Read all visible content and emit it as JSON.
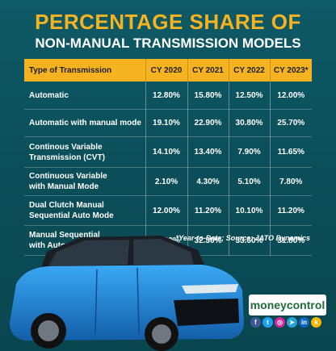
{
  "title": {
    "line1": "PERCENTAGE SHARE OF",
    "line2": "NON-MANUAL TRANSMISSION MODELS"
  },
  "table": {
    "headers": [
      "Type of Transmission",
      "CY 2020",
      "CY 2021",
      "CY 2022",
      "CY 2023*"
    ],
    "rows": [
      {
        "label_1": "Automatic",
        "label_2": "",
        "values": [
          "12.80%",
          "15.80%",
          "12.50%",
          "12.00%"
        ]
      },
      {
        "label_1": "Automatic with manual mode",
        "label_2": "",
        "values": [
          "19.10%",
          "22.90%",
          "30.80%",
          "25.70%"
        ]
      },
      {
        "label_1": "Continous Variable",
        "label_2": "Transmission (CVT)",
        "values": [
          "14.10%",
          "13.40%",
          "7.90%",
          "11.65%"
        ]
      },
      {
        "label_1": "Continuous Variable",
        "label_2": "with Manual Mode",
        "values": [
          "2.10%",
          "4.30%",
          "5.10%",
          "7.80%"
        ]
      },
      {
        "label_1": "Dual Clutch Manual",
        "label_2": "Sequential Auto Mode",
        "values": [
          "12.00%",
          "11.20%",
          "10.10%",
          "11.20%"
        ]
      },
      {
        "label_1": "Manual Sequential",
        "label_2": "with Automatic Mode",
        "values": [
          "39.90%",
          "32.30%",
          "33.60%",
          "31.80%"
        ]
      }
    ]
  },
  "footnote": "*Year-to-Date;  Source: JATO Dynamics",
  "brand": "moneycontrol",
  "social_icons": [
    {
      "icon": "facebook-icon",
      "glyph": "f",
      "color": "#3b5998"
    },
    {
      "icon": "twitter-icon",
      "glyph": "t",
      "color": "#1da1f2"
    },
    {
      "icon": "instagram-icon",
      "glyph": "◎",
      "color": "#d6249f"
    },
    {
      "icon": "telegram-icon",
      "glyph": "➤",
      "color": "#2aa3d9"
    },
    {
      "icon": "linkedin-icon",
      "glyph": "in",
      "color": "#0a66c2"
    },
    {
      "icon": "koo-icon",
      "glyph": "k",
      "color": "#f5b800"
    }
  ],
  "colors": {
    "accent": "#f6b321",
    "background": "#0b4f5a",
    "car": "#1f8fe0"
  }
}
